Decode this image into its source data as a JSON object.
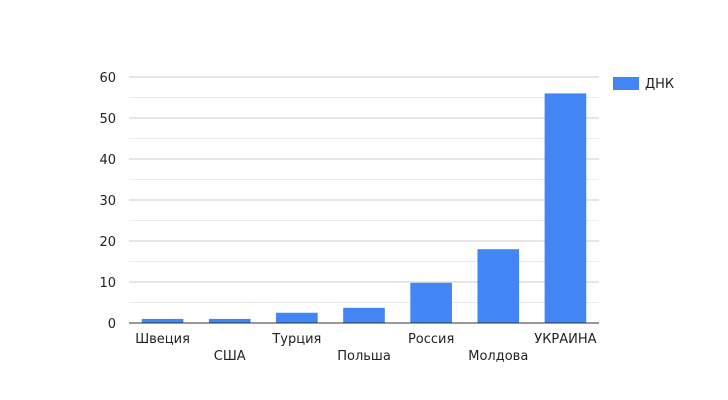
{
  "chart_data": {
    "type": "bar",
    "categories": [
      "Швеция",
      "США",
      "Турция",
      "Польша",
      "Россия",
      "Молдова",
      "УКРАИНА"
    ],
    "series": [
      {
        "name": "ДНК",
        "values": [
          1,
          1,
          2.5,
          3.7,
          9.8,
          18,
          56
        ]
      }
    ],
    "ylim": [
      0,
      60
    ],
    "yticks": [
      0,
      10,
      20,
      30,
      40,
      50,
      60
    ],
    "minor_grid": true,
    "legend_position": "right",
    "colors": {
      "bar": "#4285f4",
      "grid": "#cccccc",
      "minor_grid": "#ebebeb",
      "axis": "#333333"
    }
  }
}
